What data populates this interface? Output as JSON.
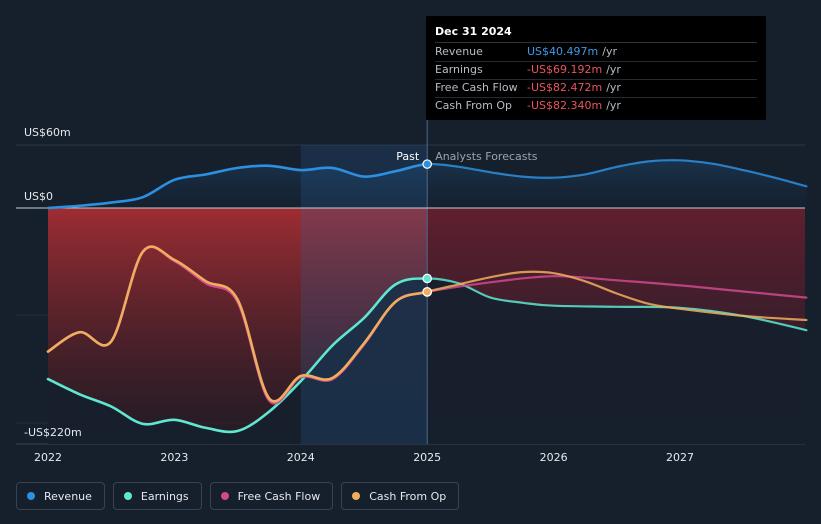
{
  "tooltip": {
    "date": "Dec 31 2024",
    "rows": [
      {
        "label": "Revenue",
        "value": "US$40.497m",
        "unit": "/yr",
        "color": "#3f9ae8"
      },
      {
        "label": "Earnings",
        "value": "-US$69.192m",
        "unit": "/yr",
        "color": "#e95561"
      },
      {
        "label": "Free Cash Flow",
        "value": "-US$82.472m",
        "unit": "/yr",
        "color": "#e95561"
      },
      {
        "label": "Cash From Op",
        "value": "-US$82.340m",
        "unit": "/yr",
        "color": "#e95561"
      }
    ]
  },
  "divider": {
    "past_label": "Past",
    "forecast_label": "Analysts Forecasts"
  },
  "legend": [
    {
      "label": "Revenue",
      "color": "#2d8fe0"
    },
    {
      "label": "Earnings",
      "color": "#5ee8cf"
    },
    {
      "label": "Free Cash Flow",
      "color": "#cf4a8e"
    },
    {
      "label": "Cash From Op",
      "color": "#efae5e"
    }
  ],
  "chart_data": {
    "type": "line",
    "y_unit": "US$m",
    "y_tick_labels": [
      "US$60m",
      "US$0",
      "-US$220m"
    ],
    "y_ticks": [
      60,
      0,
      -220
    ],
    "ylim": [
      -220,
      60
    ],
    "x_tick_labels": [
      "2022",
      "2023",
      "2024",
      "2025",
      "2026",
      "2027"
    ],
    "x_ticks": [
      2022,
      2023,
      2024,
      2025,
      2026,
      2027
    ],
    "xlim": [
      2021.75,
      2028.0
    ],
    "divider_x": 2025.0,
    "series": [
      {
        "name": "Revenue",
        "color": "#2d8fe0",
        "points": [
          [
            2022.0,
            0
          ],
          [
            2022.25,
            2
          ],
          [
            2022.5,
            5
          ],
          [
            2022.75,
            10
          ],
          [
            2023.0,
            26
          ],
          [
            2023.25,
            31
          ],
          [
            2023.5,
            37
          ],
          [
            2023.75,
            39
          ],
          [
            2024.0,
            35
          ],
          [
            2024.25,
            37
          ],
          [
            2024.5,
            29
          ],
          [
            2024.75,
            34
          ],
          [
            2025.0,
            40.5
          ],
          [
            2025.25,
            38
          ],
          [
            2025.5,
            33
          ],
          [
            2025.75,
            29
          ],
          [
            2026.0,
            28
          ],
          [
            2026.25,
            31
          ],
          [
            2026.5,
            38
          ],
          [
            2026.75,
            43
          ],
          [
            2027.0,
            44
          ],
          [
            2027.25,
            41
          ],
          [
            2027.5,
            35
          ],
          [
            2027.75,
            28
          ],
          [
            2028.0,
            20
          ]
        ]
      },
      {
        "name": "Earnings",
        "color": "#5ee8cf",
        "points": [
          [
            2022.0,
            -168
          ],
          [
            2022.25,
            -183
          ],
          [
            2022.5,
            -195
          ],
          [
            2022.75,
            -212
          ],
          [
            2023.0,
            -208
          ],
          [
            2023.25,
            -216
          ],
          [
            2023.5,
            -219
          ],
          [
            2023.75,
            -200
          ],
          [
            2024.0,
            -170
          ],
          [
            2024.25,
            -135
          ],
          [
            2024.5,
            -108
          ],
          [
            2024.75,
            -75
          ],
          [
            2025.0,
            -69.2
          ],
          [
            2025.25,
            -74
          ],
          [
            2025.5,
            -88
          ],
          [
            2025.75,
            -93
          ],
          [
            2026.0,
            -96
          ],
          [
            2026.5,
            -97
          ],
          [
            2027.0,
            -98
          ],
          [
            2027.5,
            -106
          ],
          [
            2028.0,
            -120
          ]
        ]
      },
      {
        "name": "Free Cash Flow",
        "color": "#cf4a8e",
        "points": [
          [
            2022.0,
            -141
          ],
          [
            2022.25,
            -122
          ],
          [
            2022.5,
            -131
          ],
          [
            2022.75,
            -43
          ],
          [
            2023.0,
            -52
          ],
          [
            2023.25,
            -74
          ],
          [
            2023.5,
            -92
          ],
          [
            2023.75,
            -189
          ],
          [
            2024.0,
            -166
          ],
          [
            2024.25,
            -168
          ],
          [
            2024.5,
            -134
          ],
          [
            2024.75,
            -92
          ],
          [
            2025.0,
            -82.5
          ],
          [
            2025.5,
            -73
          ],
          [
            2026.0,
            -67
          ],
          [
            2026.5,
            -71
          ],
          [
            2027.0,
            -76
          ],
          [
            2027.5,
            -82
          ],
          [
            2028.0,
            -88
          ]
        ]
      },
      {
        "name": "Cash From Op",
        "color": "#efae5e",
        "points": [
          [
            2022.0,
            -141
          ],
          [
            2022.25,
            -122
          ],
          [
            2022.5,
            -131
          ],
          [
            2022.75,
            -43
          ],
          [
            2023.0,
            -51
          ],
          [
            2023.25,
            -72
          ],
          [
            2023.5,
            -90
          ],
          [
            2023.75,
            -187
          ],
          [
            2024.0,
            -165
          ],
          [
            2024.25,
            -167
          ],
          [
            2024.5,
            -133
          ],
          [
            2024.75,
            -92
          ],
          [
            2025.0,
            -82.3
          ],
          [
            2025.25,
            -75
          ],
          [
            2025.5,
            -68
          ],
          [
            2025.75,
            -63
          ],
          [
            2026.0,
            -64
          ],
          [
            2026.25,
            -72
          ],
          [
            2026.5,
            -84
          ],
          [
            2026.75,
            -94
          ],
          [
            2027.0,
            -99
          ],
          [
            2027.5,
            -106
          ],
          [
            2028.0,
            -110
          ]
        ]
      }
    ]
  }
}
